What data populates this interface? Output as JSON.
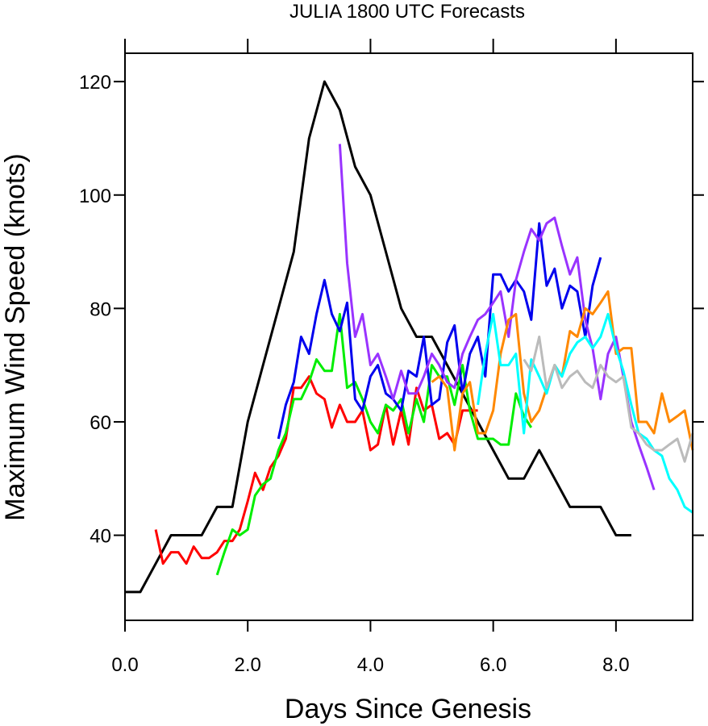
{
  "chart_data": {
    "type": "line",
    "title": "JULIA 1800 UTC Forecasts",
    "xlabel": "Days Since Genesis",
    "ylabel": "Maximum Wind Speed (knots)",
    "xlim": [
      0,
      9.25
    ],
    "ylim": [
      25,
      125
    ],
    "xticks": [
      0,
      2,
      4,
      6,
      8
    ],
    "xtick_labels": [
      "0.0",
      "2.0",
      "4.0",
      "6.0",
      "8.0"
    ],
    "yticks": [
      40,
      60,
      80,
      100,
      120
    ],
    "ytick_labels": [
      "40",
      "60",
      "80",
      "100",
      "120"
    ],
    "grid": false,
    "legend": "none",
    "series": [
      {
        "color": "#000000",
        "points": [
          [
            0,
            30
          ],
          [
            0.25,
            30
          ],
          [
            0.5,
            35
          ],
          [
            0.75,
            40
          ],
          [
            1.0,
            40
          ],
          [
            1.25,
            40
          ],
          [
            1.5,
            45
          ],
          [
            1.75,
            45
          ],
          [
            2.0,
            60
          ],
          [
            2.25,
            70
          ],
          [
            2.5,
            80
          ],
          [
            2.75,
            90
          ],
          [
            3.0,
            110
          ],
          [
            3.25,
            120
          ],
          [
            3.5,
            115
          ],
          [
            3.75,
            105
          ],
          [
            4.0,
            100
          ],
          [
            4.25,
            90
          ],
          [
            4.5,
            80
          ],
          [
            4.75,
            75
          ],
          [
            5.0,
            75
          ],
          [
            5.25,
            70
          ],
          [
            5.5,
            65
          ],
          [
            5.75,
            60
          ],
          [
            6.0,
            55
          ],
          [
            6.25,
            50
          ],
          [
            6.5,
            50
          ],
          [
            6.75,
            55
          ],
          [
            7.0,
            50
          ],
          [
            7.25,
            45
          ],
          [
            7.5,
            45
          ],
          [
            7.75,
            45
          ],
          [
            8.0,
            40
          ],
          [
            8.25,
            40
          ]
        ]
      },
      {
        "color": "#ff0000",
        "points": [
          [
            0.5,
            41
          ],
          [
            0.62,
            35
          ],
          [
            0.75,
            37
          ],
          [
            0.87,
            37
          ],
          [
            1.0,
            35
          ],
          [
            1.12,
            38
          ],
          [
            1.25,
            36
          ],
          [
            1.37,
            36
          ],
          [
            1.5,
            37
          ],
          [
            1.62,
            39
          ],
          [
            1.75,
            39
          ],
          [
            1.87,
            41
          ],
          [
            2.0,
            46
          ],
          [
            2.12,
            51
          ],
          [
            2.25,
            48
          ],
          [
            2.37,
            52
          ],
          [
            2.5,
            54
          ],
          [
            2.62,
            57
          ],
          [
            2.75,
            66
          ],
          [
            2.87,
            66
          ],
          [
            3.0,
            68
          ],
          [
            3.12,
            65
          ],
          [
            3.25,
            64
          ],
          [
            3.37,
            59
          ],
          [
            3.5,
            63
          ],
          [
            3.62,
            60
          ],
          [
            3.75,
            60
          ],
          [
            3.87,
            62
          ],
          [
            4.0,
            55
          ],
          [
            4.12,
            56
          ],
          [
            4.25,
            63
          ],
          [
            4.37,
            56
          ],
          [
            4.5,
            62
          ],
          [
            4.62,
            56
          ],
          [
            4.75,
            66
          ],
          [
            4.87,
            62
          ],
          [
            5.0,
            63
          ],
          [
            5.12,
            57
          ],
          [
            5.25,
            58
          ],
          [
            5.37,
            56
          ],
          [
            5.5,
            62
          ],
          [
            5.62,
            62
          ],
          [
            5.75,
            62
          ]
        ]
      },
      {
        "color": "#00ee00",
        "points": [
          [
            1.5,
            33
          ],
          [
            1.62,
            37
          ],
          [
            1.75,
            41
          ],
          [
            1.87,
            40
          ],
          [
            2.0,
            41
          ],
          [
            2.12,
            47
          ],
          [
            2.25,
            49
          ],
          [
            2.37,
            50
          ],
          [
            2.5,
            55
          ],
          [
            2.62,
            58
          ],
          [
            2.75,
            64
          ],
          [
            2.87,
            64
          ],
          [
            3.0,
            67
          ],
          [
            3.12,
            71
          ],
          [
            3.25,
            69
          ],
          [
            3.37,
            69
          ],
          [
            3.5,
            79
          ],
          [
            3.62,
            66
          ],
          [
            3.75,
            67
          ],
          [
            3.87,
            64
          ],
          [
            4.0,
            60
          ],
          [
            4.12,
            58
          ],
          [
            4.25,
            63
          ],
          [
            4.37,
            62
          ],
          [
            4.5,
            64
          ],
          [
            4.62,
            58
          ],
          [
            4.75,
            64
          ],
          [
            4.87,
            60
          ],
          [
            5.0,
            70
          ],
          [
            5.12,
            68
          ],
          [
            5.25,
            68
          ],
          [
            5.37,
            63
          ],
          [
            5.5,
            70
          ],
          [
            5.62,
            62
          ],
          [
            5.75,
            57
          ],
          [
            5.87,
            57
          ],
          [
            6.0,
            57
          ],
          [
            6.12,
            56
          ],
          [
            6.25,
            56
          ],
          [
            6.37,
            65
          ],
          [
            6.5,
            61
          ],
          [
            6.62,
            59
          ]
        ]
      },
      {
        "color": "#0000ee",
        "points": [
          [
            2.5,
            57
          ],
          [
            2.62,
            63
          ],
          [
            2.75,
            67
          ],
          [
            2.87,
            75
          ],
          [
            3.0,
            72
          ],
          [
            3.12,
            79
          ],
          [
            3.25,
            85
          ],
          [
            3.37,
            79
          ],
          [
            3.5,
            76
          ],
          [
            3.62,
            81
          ],
          [
            3.75,
            64
          ],
          [
            3.87,
            62
          ],
          [
            4.0,
            68
          ],
          [
            4.12,
            70
          ],
          [
            4.25,
            65
          ],
          [
            4.37,
            64
          ],
          [
            4.5,
            62
          ],
          [
            4.62,
            69
          ],
          [
            4.75,
            68
          ],
          [
            4.87,
            75
          ],
          [
            5.0,
            63
          ],
          [
            5.12,
            64
          ],
          [
            5.25,
            74
          ],
          [
            5.37,
            77
          ],
          [
            5.5,
            65
          ],
          [
            5.62,
            72
          ],
          [
            5.75,
            75
          ],
          [
            5.87,
            68
          ],
          [
            6.0,
            86
          ],
          [
            6.12,
            86
          ],
          [
            6.25,
            83
          ],
          [
            6.37,
            85
          ],
          [
            6.5,
            83
          ],
          [
            6.62,
            78
          ],
          [
            6.75,
            95
          ],
          [
            6.87,
            84
          ],
          [
            7.0,
            87
          ],
          [
            7.12,
            80
          ],
          [
            7.25,
            84
          ],
          [
            7.37,
            83
          ],
          [
            7.5,
            75
          ],
          [
            7.62,
            84
          ],
          [
            7.75,
            89
          ]
        ]
      },
      {
        "color": "#9933ff",
        "points": [
          [
            3.5,
            109
          ],
          [
            3.62,
            88
          ],
          [
            3.75,
            75
          ],
          [
            3.87,
            79
          ],
          [
            4.0,
            70
          ],
          [
            4.12,
            72
          ],
          [
            4.25,
            68
          ],
          [
            4.37,
            64
          ],
          [
            4.5,
            69
          ],
          [
            4.62,
            65
          ],
          [
            4.75,
            65
          ],
          [
            4.87,
            68
          ],
          [
            5.0,
            72
          ],
          [
            5.12,
            70
          ],
          [
            5.25,
            67
          ],
          [
            5.37,
            66
          ],
          [
            5.5,
            72
          ],
          [
            5.62,
            75
          ],
          [
            5.75,
            78
          ],
          [
            5.87,
            79
          ],
          [
            6.0,
            81
          ],
          [
            6.12,
            83
          ],
          [
            6.25,
            75
          ],
          [
            6.37,
            85
          ],
          [
            6.5,
            90
          ],
          [
            6.62,
            94
          ],
          [
            6.75,
            92
          ],
          [
            6.87,
            95
          ],
          [
            7.0,
            96
          ],
          [
            7.12,
            91
          ],
          [
            7.25,
            86
          ],
          [
            7.37,
            89
          ],
          [
            7.5,
            78
          ],
          [
            7.62,
            73
          ],
          [
            7.75,
            64
          ],
          [
            7.87,
            72
          ],
          [
            8.0,
            75
          ],
          [
            8.12,
            68
          ],
          [
            8.25,
            60
          ],
          [
            8.37,
            56
          ],
          [
            8.5,
            52
          ],
          [
            8.62,
            48
          ]
        ]
      },
      {
        "color": "#ff8800",
        "points": [
          [
            5.0,
            67
          ],
          [
            5.12,
            68
          ],
          [
            5.25,
            66
          ],
          [
            5.37,
            55
          ],
          [
            5.5,
            65
          ],
          [
            5.62,
            67
          ],
          [
            5.75,
            58
          ],
          [
            5.87,
            58
          ],
          [
            6.0,
            62
          ],
          [
            6.12,
            72
          ],
          [
            6.25,
            78
          ],
          [
            6.37,
            79
          ],
          [
            6.5,
            65
          ],
          [
            6.62,
            60
          ],
          [
            6.75,
            62
          ],
          [
            6.87,
            66
          ],
          [
            7.0,
            70
          ],
          [
            7.12,
            68
          ],
          [
            7.25,
            76
          ],
          [
            7.37,
            75
          ],
          [
            7.5,
            80
          ],
          [
            7.62,
            79
          ],
          [
            7.75,
            81
          ],
          [
            7.87,
            83
          ],
          [
            8.0,
            72
          ],
          [
            8.12,
            73
          ],
          [
            8.25,
            73
          ],
          [
            8.37,
            60
          ],
          [
            8.5,
            60
          ],
          [
            8.62,
            58
          ],
          [
            8.75,
            65
          ],
          [
            8.87,
            60
          ],
          [
            9.0,
            61
          ],
          [
            9.12,
            62
          ],
          [
            9.25,
            55
          ]
        ]
      },
      {
        "color": "#00ffff",
        "points": [
          [
            5.75,
            63
          ],
          [
            5.87,
            72
          ],
          [
            6.0,
            79
          ],
          [
            6.12,
            70
          ],
          [
            6.25,
            70
          ],
          [
            6.37,
            72
          ],
          [
            6.5,
            58
          ],
          [
            6.62,
            71
          ],
          [
            6.75,
            68
          ],
          [
            6.87,
            65
          ],
          [
            7.0,
            70
          ],
          [
            7.12,
            68
          ],
          [
            7.25,
            72
          ],
          [
            7.37,
            74
          ],
          [
            7.5,
            75
          ],
          [
            7.62,
            73
          ],
          [
            7.75,
            75
          ],
          [
            7.87,
            79
          ],
          [
            8.0,
            73
          ],
          [
            8.12,
            69
          ],
          [
            8.25,
            63
          ],
          [
            8.37,
            58
          ],
          [
            8.5,
            57
          ],
          [
            8.62,
            55
          ],
          [
            8.75,
            54
          ],
          [
            8.87,
            50
          ],
          [
            9.0,
            48
          ],
          [
            9.12,
            45
          ],
          [
            9.25,
            44
          ]
        ]
      },
      {
        "color": "#bbbbbb",
        "points": [
          [
            6.5,
            71
          ],
          [
            6.62,
            69
          ],
          [
            6.75,
            75
          ],
          [
            6.87,
            66
          ],
          [
            7.0,
            70
          ],
          [
            7.12,
            66
          ],
          [
            7.25,
            68
          ],
          [
            7.37,
            69
          ],
          [
            7.5,
            67
          ],
          [
            7.62,
            66
          ],
          [
            7.75,
            70
          ],
          [
            7.87,
            68
          ],
          [
            8.0,
            67
          ],
          [
            8.12,
            68
          ],
          [
            8.25,
            59
          ],
          [
            8.37,
            58
          ],
          [
            8.5,
            56
          ],
          [
            8.62,
            55
          ],
          [
            8.75,
            55
          ],
          [
            8.87,
            56
          ],
          [
            9.0,
            57
          ],
          [
            9.12,
            53
          ],
          [
            9.25,
            58
          ]
        ]
      }
    ]
  }
}
